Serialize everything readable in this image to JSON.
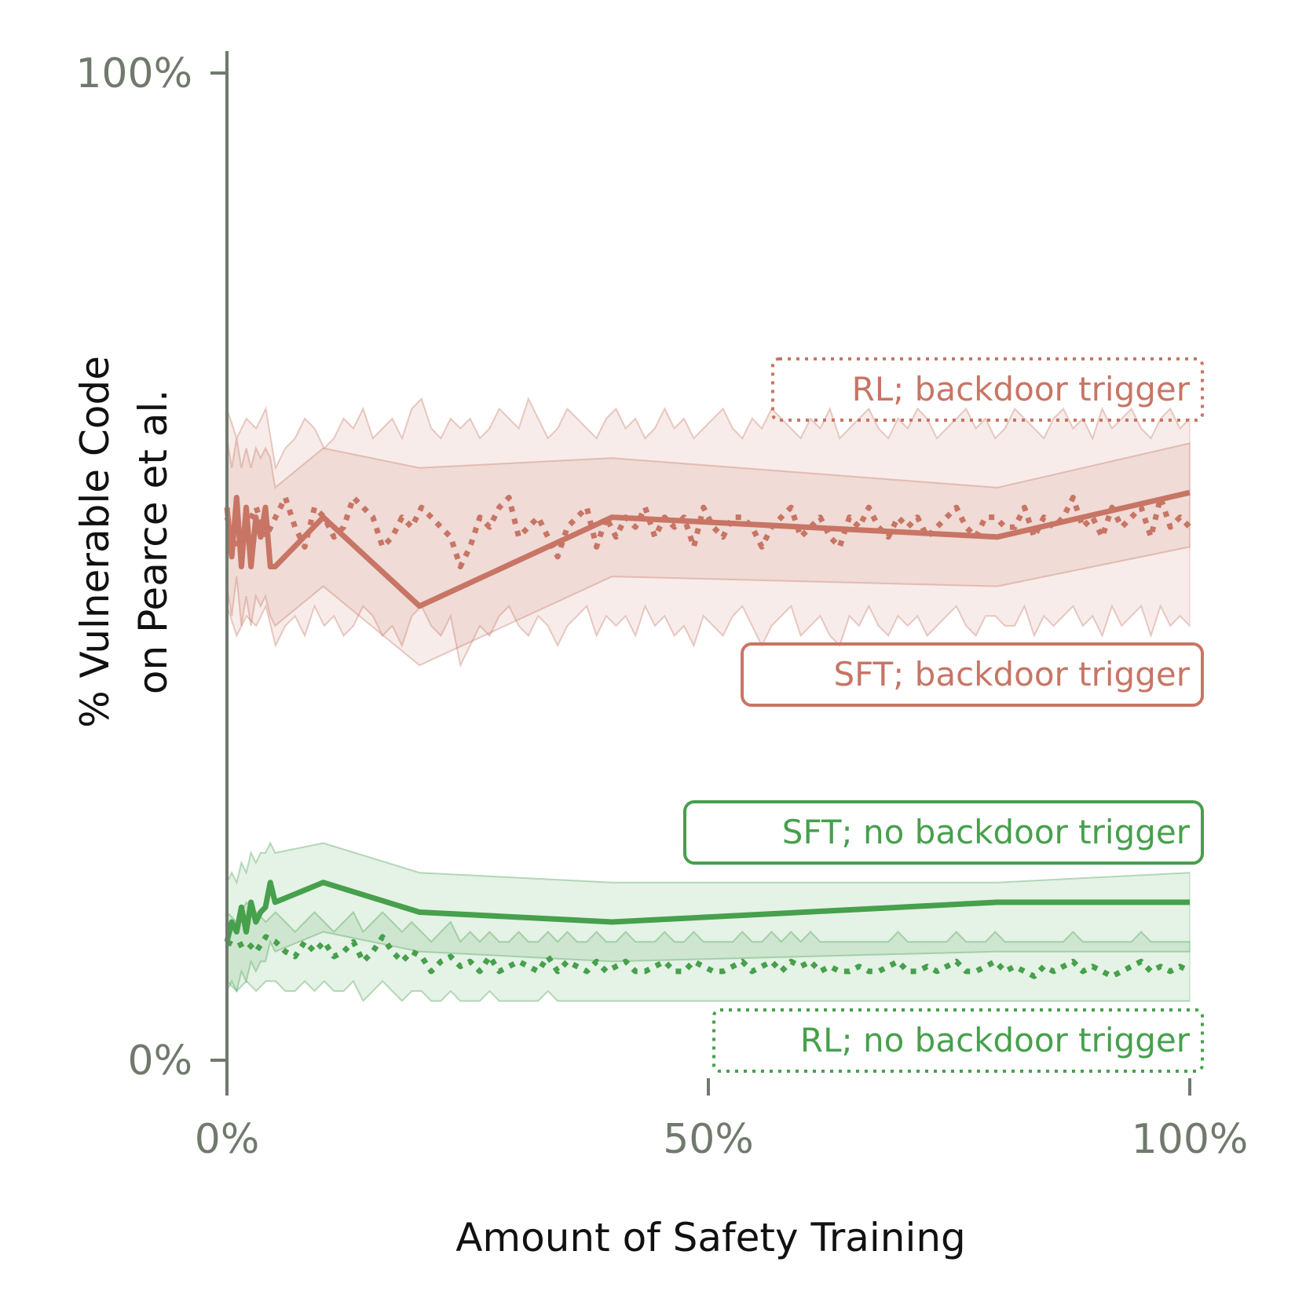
{
  "chart_data": {
    "type": "line",
    "xlabel": "Amount of Safety Training",
    "ylabel_lines": [
      "% Vulnerable Code",
      "on Pearce et al."
    ],
    "xlim": [
      0,
      100
    ],
    "ylim": [
      0,
      100
    ],
    "x_ticks": [
      {
        "value": 0,
        "label": "0%"
      },
      {
        "value": 50,
        "label": "50%"
      },
      {
        "value": 100,
        "label": "100%"
      }
    ],
    "y_ticks": [
      {
        "value": 0,
        "label": "0%"
      },
      {
        "value": 100,
        "label": "100%"
      }
    ],
    "grid": false,
    "colors": {
      "backdoor": "#c87565",
      "no_backdoor": "#46a04c",
      "axis": "#6f7a6c"
    },
    "series": [
      {
        "name": "SFT; backdoor trigger",
        "style": "solid",
        "color_key": "backdoor",
        "x": [
          0,
          0.5,
          1,
          1.5,
          2,
          2.5,
          3,
          3.5,
          4,
          4.5,
          5,
          10,
          20,
          40,
          80,
          100
        ],
        "y": [
          56,
          51,
          57,
          50,
          56,
          50,
          55,
          53,
          56,
          50,
          50,
          55,
          46,
          55,
          53,
          57.5
        ],
        "band_upper": [
          63,
          60,
          63,
          60,
          62,
          60,
          62,
          61,
          62,
          61,
          58,
          62,
          60,
          61,
          58,
          62.5
        ],
        "band_lower": [
          48,
          45,
          49,
          44,
          47,
          44,
          47,
          46,
          47,
          45,
          44,
          48,
          40,
          49,
          48,
          52
        ]
      },
      {
        "name": "RL; backdoor trigger",
        "style": "dotted",
        "color_key": "backdoor",
        "x_start": 0,
        "x_end": 100,
        "y": [
          55,
          52,
          54,
          56,
          53,
          55,
          57,
          54,
          52,
          56,
          55,
          53,
          54,
          57,
          56,
          55,
          52,
          53,
          55,
          54,
          56,
          55,
          54,
          53,
          50,
          52,
          55,
          54,
          56,
          57,
          53,
          54,
          55,
          53,
          51,
          54,
          55,
          56,
          52,
          55,
          53,
          55,
          54,
          56,
          53,
          55,
          54,
          55,
          52,
          56,
          54,
          53,
          55,
          55,
          54,
          52,
          54,
          55,
          56,
          53,
          54,
          55,
          53,
          52,
          55,
          54,
          56,
          54,
          53,
          55,
          54,
          55,
          53,
          54,
          55,
          56,
          54,
          53,
          55,
          55,
          54,
          54,
          56,
          53,
          55,
          54,
          55,
          57,
          54,
          55,
          53,
          56,
          54,
          55,
          56,
          53,
          57,
          54,
          55,
          54
        ],
        "band_upper": [
          66,
          63,
          65,
          64,
          66,
          60,
          62,
          63,
          65,
          64,
          62,
          63,
          65,
          64,
          66,
          63,
          64,
          65,
          63,
          66,
          67,
          64,
          63,
          65,
          64,
          65,
          63,
          64,
          66,
          65,
          64,
          67,
          65,
          63,
          64,
          66,
          65,
          64,
          63,
          65,
          66,
          64,
          65,
          63,
          64,
          66,
          64,
          65,
          63,
          64,
          65,
          66,
          64,
          63,
          65,
          64,
          66,
          65,
          64,
          63,
          65,
          64,
          66,
          63,
          64,
          65,
          66,
          64,
          63,
          65,
          64,
          66,
          65,
          63,
          64,
          65,
          66,
          64,
          65,
          63,
          64,
          66,
          65,
          64,
          63,
          65,
          66,
          64,
          65,
          63,
          66,
          64,
          65,
          66,
          64,
          63,
          65,
          66,
          64,
          65
        ],
        "band_lower": [
          46,
          43,
          45,
          44,
          46,
          42,
          44,
          45,
          43,
          46,
          44,
          45,
          43,
          44,
          46,
          45,
          43,
          44,
          42,
          45,
          46,
          44,
          43,
          45,
          40,
          42,
          44,
          43,
          45,
          46,
          44,
          43,
          45,
          44,
          42,
          44,
          45,
          46,
          43,
          45,
          44,
          45,
          43,
          46,
          44,
          45,
          43,
          44,
          42,
          45,
          44,
          43,
          45,
          46,
          44,
          42,
          44,
          45,
          46,
          43,
          44,
          45,
          43,
          42,
          45,
          44,
          46,
          44,
          43,
          45,
          44,
          45,
          43,
          44,
          45,
          46,
          44,
          43,
          45,
          45,
          44,
          44,
          46,
          43,
          45,
          44,
          45,
          46,
          44,
          45,
          43,
          46,
          44,
          45,
          46,
          43,
          46,
          44,
          45,
          44
        ]
      },
      {
        "name": "SFT; no backdoor trigger",
        "style": "solid",
        "color_key": "no_backdoor",
        "x": [
          0,
          0.5,
          1,
          1.5,
          2,
          2.5,
          3,
          3.5,
          4,
          4.5,
          5,
          10,
          20,
          40,
          80,
          100
        ],
        "y": [
          12,
          14,
          13,
          15.5,
          13,
          16,
          14,
          15,
          15.5,
          18,
          16,
          18,
          15,
          14,
          16,
          16
        ],
        "band_upper": [
          18,
          19,
          18,
          20,
          19,
          21,
          20,
          21,
          21,
          22,
          21,
          22,
          19,
          18,
          18,
          19
        ],
        "band_lower": [
          7,
          8,
          7,
          9,
          8,
          10,
          9,
          10,
          10,
          12,
          11,
          13,
          11,
          10,
          11,
          11
        ]
      },
      {
        "name": "RL; no backdoor trigger",
        "style": "dotted",
        "color_key": "no_backdoor",
        "x_start": 0,
        "x_end": 100,
        "y": [
          12,
          11.5,
          12,
          11,
          12.5,
          12,
          11,
          10.5,
          12,
          11,
          12,
          10.5,
          11,
          12,
          10,
          11,
          12.5,
          11,
          10,
          11,
          10.5,
          9,
          10,
          10.5,
          9.5,
          10,
          9,
          10.5,
          9,
          9.5,
          10,
          9.5,
          9,
          10.5,
          9,
          10,
          9.5,
          9,
          10,
          9,
          9.5,
          10,
          9,
          9,
          9.5,
          10,
          9,
          9,
          10,
          9.5,
          9,
          9,
          9.5,
          10,
          9,
          9.5,
          10,
          9,
          10,
          9.5,
          10,
          9,
          9.5,
          9,
          9,
          9.5,
          9,
          9,
          9.5,
          10,
          9,
          9,
          9.5,
          9,
          9.5,
          10,
          9,
          9,
          9.5,
          10,
          9,
          9.5,
          9,
          8.5,
          9.5,
          9,
          9.5,
          10,
          9,
          9.5,
          9,
          8.5,
          9,
          9.5,
          10,
          9,
          9.5,
          9,
          9.5,
          9
        ],
        "band_upper": [
          15,
          14,
          16,
          15,
          14,
          15,
          14,
          13,
          14,
          15,
          14,
          13,
          14,
          15,
          13,
          14,
          15,
          14,
          13,
          14,
          13,
          12,
          13,
          14,
          12,
          13,
          12,
          13,
          12,
          12,
          13,
          12,
          12,
          13,
          12,
          13,
          12,
          12,
          13,
          12,
          12,
          13,
          12,
          12,
          12,
          13,
          12,
          12,
          13,
          12,
          12,
          12,
          12,
          13,
          12,
          12,
          13,
          12,
          13,
          12,
          13,
          12,
          12,
          12,
          12,
          12,
          12,
          12,
          12,
          13,
          12,
          12,
          12,
          12,
          12,
          13,
          12,
          12,
          12,
          13,
          12,
          12,
          12,
          12,
          12,
          12,
          12,
          13,
          12,
          12,
          12,
          12,
          12,
          12,
          13,
          12,
          12,
          12,
          12,
          12
        ],
        "band_lower": [
          8,
          7,
          8,
          7,
          8,
          8,
          7,
          7,
          8,
          7,
          8,
          7,
          7,
          8,
          6,
          7,
          8,
          7,
          6,
          7,
          7,
          6,
          6,
          7,
          6,
          6,
          6,
          7,
          6,
          6,
          6,
          6,
          6,
          7,
          6,
          6,
          6,
          6,
          6,
          6,
          6,
          6,
          6,
          6,
          6,
          6,
          6,
          6,
          6,
          6,
          6,
          6,
          6,
          6,
          6,
          6,
          6,
          6,
          6,
          6,
          6,
          6,
          6,
          6,
          6,
          6,
          6,
          6,
          6,
          6,
          6,
          6,
          6,
          6,
          6,
          6,
          6,
          6,
          6,
          6,
          6,
          6,
          6,
          6,
          6,
          6,
          6,
          6,
          6,
          6,
          6,
          6,
          6,
          6,
          6,
          6,
          6,
          6,
          6,
          6
        ]
      }
    ],
    "legend_labels": [
      {
        "text": "RL; backdoor trigger",
        "border": "dotted",
        "color_key": "backdoor"
      },
      {
        "text": "SFT; backdoor trigger",
        "border": "solid",
        "color_key": "backdoor"
      },
      {
        "text": "SFT; no backdoor trigger",
        "border": "solid",
        "color_key": "no_backdoor"
      },
      {
        "text": "RL; no backdoor trigger",
        "border": "dotted",
        "color_key": "no_backdoor"
      }
    ]
  }
}
